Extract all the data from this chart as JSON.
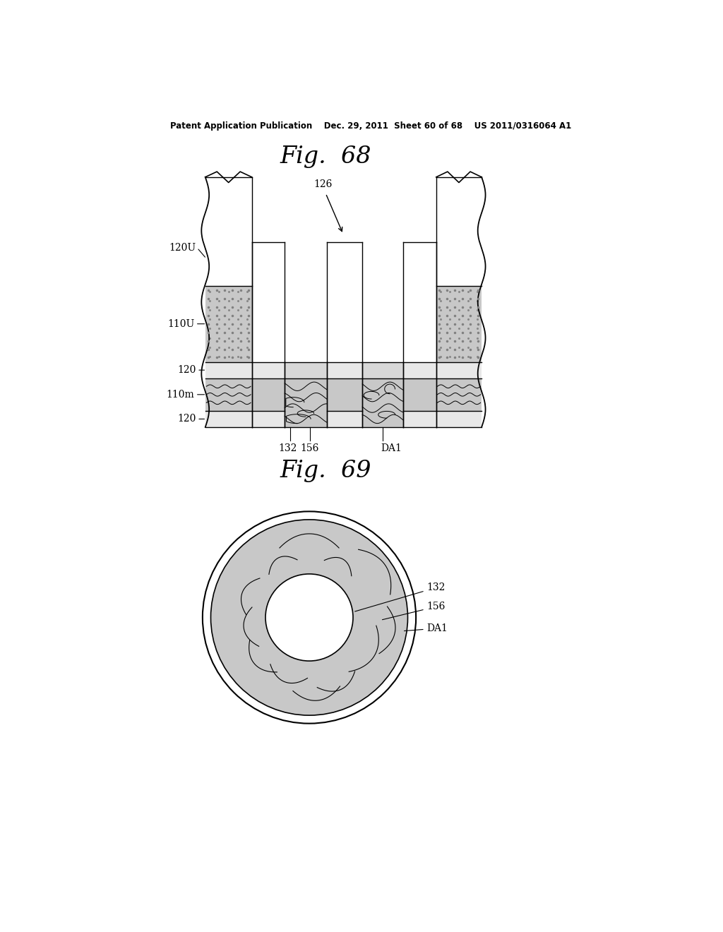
{
  "bg_color": "#ffffff",
  "fig_width": 10.24,
  "fig_height": 13.2,
  "header_text": "Patent Application Publication    Dec. 29, 2011  Sheet 60 of 68    US 2011/0316064 A1",
  "fig68_title": "Fig.  68",
  "fig69_title": "Fig.  69",
  "gray_fill": "#c8c8c8",
  "dot_fill": "#cccccc",
  "white": "#ffffff",
  "black": "#000000"
}
